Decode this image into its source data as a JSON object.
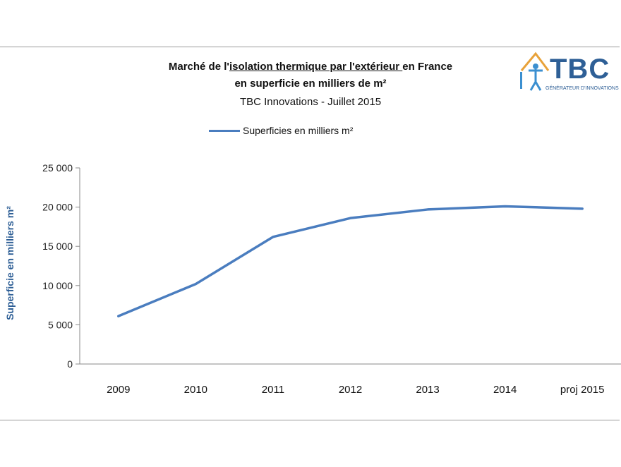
{
  "chart_data": {
    "type": "line",
    "title_line1_parts": [
      "Marché de l'",
      "isolation  thermique par l'extérieur ",
      "en France"
    ],
    "title_line2": "en superficie  en milliers de m²",
    "subtitle": "TBC Innovations - Juillet 2015",
    "xlabel": "",
    "ylabel": "Superficie en milliers m²",
    "ylim": [
      0,
      25000
    ],
    "yticks": [
      0,
      5000,
      10000,
      15000,
      20000,
      25000
    ],
    "ytick_labels": [
      "0",
      "5 000",
      "10 000",
      "15 000",
      "20 000",
      "25 000"
    ],
    "categories": [
      "2009",
      "2010",
      "2011",
      "2012",
      "2013",
      "2014",
      "proj 2015"
    ],
    "series": [
      {
        "name": "Superficies en milliers m²",
        "color": "#4a7dbf",
        "values": [
          6100,
          10200,
          16200,
          18600,
          19700,
          20100,
          19800
        ]
      }
    ],
    "legend_position": "top-center",
    "grid": false
  },
  "logo": {
    "text": "TBC",
    "tagline": "GÉNÉRATEUR D'INNOVATIONS",
    "icon": "house-person-logo-icon",
    "color": "#2e5f96"
  }
}
